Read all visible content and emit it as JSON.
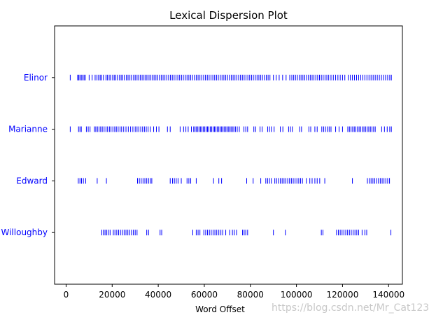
{
  "chart_data": {
    "type": "scatter",
    "title": "Lexical Dispersion Plot",
    "xlabel": "Word Offset",
    "ylabel": "",
    "xlim": [
      -5000,
      146000
    ],
    "xticks": [
      0,
      20000,
      40000,
      60000,
      80000,
      100000,
      120000,
      140000
    ],
    "categories": [
      "Elinor",
      "Marianne",
      "Edward",
      "Willoughby"
    ],
    "marker": "|",
    "color": "#0000ff",
    "series": [
      {
        "name": "Elinor",
        "x": [
          1800,
          5000,
          5500,
          6000,
          6600,
          7200,
          7800,
          8300,
          10000,
          11300,
          12600,
          13400,
          14100,
          14800,
          15400,
          16200,
          17300,
          17900,
          18700,
          19300,
          20200,
          20900,
          21600,
          22300,
          23200,
          23900,
          24600,
          25300,
          26200,
          26900,
          27700,
          28400,
          29300,
          30000,
          30800,
          31500,
          32200,
          33000,
          33800,
          34500,
          35100,
          36000,
          36800,
          37500,
          38200,
          39000,
          39800,
          40500,
          41300,
          42100,
          42900,
          43700,
          44500,
          45300,
          46100,
          46900,
          47700,
          48500,
          49300,
          50100,
          50900,
          51700,
          52500,
          53300,
          54100,
          54900,
          55700,
          56500,
          57300,
          58100,
          58900,
          59700,
          60500,
          61300,
          62100,
          62900,
          63700,
          64500,
          65300,
          66100,
          66900,
          67700,
          68500,
          69300,
          70100,
          70900,
          71700,
          72500,
          73300,
          74100,
          74900,
          75700,
          76500,
          77300,
          78100,
          78900,
          79700,
          80500,
          81300,
          82100,
          82900,
          83700,
          84500,
          85300,
          86100,
          86900,
          87700,
          88500,
          90000,
          91200,
          92500,
          94000,
          95500,
          97100,
          98000,
          98800,
          99600,
          100400,
          101200,
          102000,
          102800,
          103600,
          104400,
          105200,
          106000,
          106800,
          107600,
          108400,
          109200,
          110000,
          110800,
          111600,
          112400,
          113200,
          114000,
          115000,
          116000,
          117000,
          118000,
          119000,
          120000,
          121000,
          122500,
          123400,
          124300,
          125200,
          126100,
          127000,
          127900,
          128800,
          129700,
          130600,
          131500,
          132400,
          133300,
          134200,
          135100,
          136000,
          136900,
          137800,
          138700,
          139600,
          140500,
          141200
        ],
        "y": "Elinor"
      },
      {
        "name": "Marianne",
        "x": [
          1800,
          5400,
          6000,
          6600,
          8800,
          9600,
          10400,
          12300,
          12900,
          13600,
          14300,
          15000,
          15700,
          16500,
          17300,
          18000,
          18800,
          19500,
          20300,
          21100,
          21800,
          22600,
          23400,
          24100,
          25000,
          26000,
          27000,
          28000,
          29000,
          30000,
          30800,
          31600,
          32400,
          33200,
          34000,
          34800,
          35600,
          36600,
          38000,
          39200,
          40300,
          44000,
          45200,
          49500,
          51000,
          52000,
          53000,
          54400,
          55400,
          56000,
          56600,
          57200,
          57800,
          58400,
          59000,
          59600,
          60200,
          60800,
          61400,
          62000,
          62600,
          63200,
          63800,
          64400,
          65000,
          65600,
          66200,
          66800,
          67400,
          68000,
          68600,
          69200,
          69800,
          70400,
          71000,
          71600,
          72200,
          72800,
          73500,
          74300,
          75200,
          77200,
          78000,
          78800,
          81500,
          82300,
          84200,
          85100,
          87500,
          88300,
          89100,
          90300,
          93000,
          94100,
          96600,
          97400,
          98200,
          101400,
          102200,
          105400,
          106200,
          108000,
          109000,
          111000,
          111800,
          112600,
          113400,
          114200,
          115000,
          117000,
          118500,
          120000,
          122300,
          123000,
          123700,
          124400,
          125100,
          125800,
          126500,
          127200,
          127900,
          128600,
          129300,
          130000,
          130700,
          131400,
          132100,
          132800,
          133500,
          134200,
          137000,
          138200,
          139400,
          140500,
          141200
        ],
        "y": "Marianne"
      },
      {
        "name": "Edward",
        "x": [
          5300,
          6000,
          6700,
          7500,
          8500,
          13500,
          17500,
          31000,
          31800,
          32600,
          33400,
          34200,
          35000,
          35800,
          36600,
          37200,
          45200,
          46200,
          47000,
          47800,
          48600,
          50000,
          52500,
          53300,
          54100,
          56500,
          64000,
          66300,
          67500,
          78400,
          81200,
          84500,
          86700,
          87500,
          88300,
          89100,
          90600,
          91400,
          92200,
          93000,
          93800,
          94600,
          95400,
          96200,
          97000,
          97800,
          98600,
          99400,
          100200,
          101000,
          101800,
          102600,
          104300,
          105800,
          106800,
          108000,
          109000,
          110100,
          112300,
          124300,
          130800,
          131600,
          132400,
          133200,
          134000,
          134800,
          135600,
          136400,
          137200,
          138000,
          138800,
          139600,
          140400
        ],
        "y": "Edward"
      },
      {
        "name": "Willoughby",
        "x": [
          15500,
          16200,
          16900,
          17600,
          18300,
          19100,
          20500,
          21200,
          22000,
          22800,
          23600,
          24400,
          25200,
          26000,
          26800,
          27600,
          28400,
          29200,
          30000,
          30800,
          35000,
          35800,
          40800,
          41500,
          55000,
          56500,
          57300,
          58100,
          59800,
          60600,
          61400,
          62200,
          63000,
          63800,
          64600,
          65400,
          66300,
          67200,
          68000,
          69300,
          71000,
          72200,
          73000,
          74000,
          76600,
          77300,
          78000,
          78800,
          90000,
          95200,
          110800,
          111500,
          117400,
          118200,
          119000,
          119800,
          120600,
          121400,
          122200,
          123000,
          123800,
          124600,
          125400,
          126200,
          127000,
          128500,
          129700,
          130500,
          141000
        ],
        "y": "Willoughby"
      }
    ],
    "grid": false,
    "legend": "none"
  },
  "watermark": "https://blog.csdn.net/Mr_Cat123"
}
